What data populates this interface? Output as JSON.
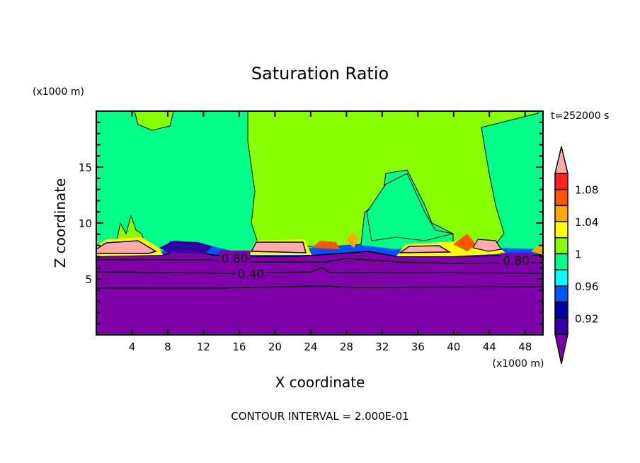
{
  "chart_data": {
    "type": "heatmap",
    "subtype": "filled-contour",
    "title": "Saturation Ratio",
    "xlabel": "X coordinate",
    "ylabel": "Z coordinate",
    "x_unit": "(x1000 m)",
    "y_unit": "(x1000 m)",
    "xlim": [
      0,
      50
    ],
    "ylim": [
      0,
      20
    ],
    "xticks": [
      4,
      8,
      12,
      16,
      20,
      24,
      28,
      32,
      36,
      40,
      44,
      48
    ],
    "yticks": [
      5,
      10,
      15
    ],
    "time_label": "t=252000 s",
    "footer": "CONTOUR INTERVAL = 2.000E-01",
    "contour_labels": [
      {
        "text": "0.80",
        "x": 15.5,
        "z": 6.9
      },
      {
        "text": "0.40",
        "x": 17.3,
        "z": 5.5
      },
      {
        "text": "0.80",
        "x": 47,
        "z": 6.7
      }
    ],
    "colorbar": {
      "levels": [
        0.92,
        0.94,
        0.96,
        0.98,
        1.0,
        1.02,
        1.04,
        1.06,
        1.08,
        1.1
      ],
      "tick_labels": [
        "0.92",
        "0.96",
        "1",
        "1.04",
        "1.08"
      ],
      "tick_values": [
        0.92,
        0.96,
        1.0,
        1.04,
        1.08
      ],
      "colors": [
        "#7f00a8",
        "#3300a0",
        "#0000a8",
        "#0055ff",
        "#00ffff",
        "#00ff88",
        "#88ff00",
        "#ffff00",
        "#ffaa00",
        "#ff5500",
        "#ff2222",
        "#ffaaaa"
      ],
      "extend": "both"
    }
  }
}
